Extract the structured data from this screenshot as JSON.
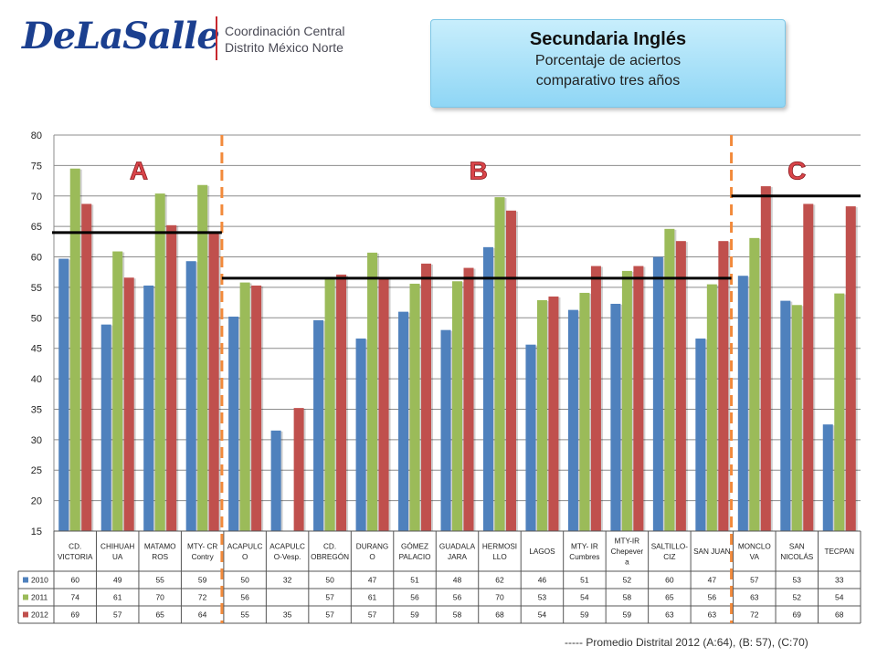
{
  "logo": {
    "brand": "DeLaSalle",
    "line1": "Coordinación Central",
    "line2": "Distrito México Norte"
  },
  "header": {
    "title": "Secundaria Inglés",
    "subtitle_line1": "Porcentaje de aciertos",
    "subtitle_line2": "comparativo tres años"
  },
  "footnote": "----- Promedio Distrital 2012   (A:64), (B: 57), (C:70)",
  "colors": {
    "2010": "#4f81bd",
    "2011": "#9bbb59",
    "2012": "#c0504d",
    "divider": "#f28a3b"
  },
  "chart_data": {
    "type": "bar",
    "categories": [
      [
        "CD.",
        "VICTORIA"
      ],
      [
        "CHIHUAH",
        "UA"
      ],
      [
        "MATAMO",
        "ROS"
      ],
      [
        "MTY- CR",
        "Contry"
      ],
      [
        "ACAPULC",
        "O"
      ],
      [
        "ACAPULC",
        "O-Vesp."
      ],
      [
        "CD.",
        "OBREGÓN"
      ],
      [
        "DURANG",
        "O"
      ],
      [
        "GÓMEZ",
        "PALACIO"
      ],
      [
        "GUADALA",
        "JARA"
      ],
      [
        "HERMOSI",
        "LLO"
      ],
      [
        "LAGOS"
      ],
      [
        "MTY- IR",
        "Cumbres"
      ],
      [
        "MTY-IR",
        "Chepever",
        "a"
      ],
      [
        "SALTILLO-",
        "CIZ"
      ],
      [
        "SAN JUAN"
      ],
      [
        "MONCLO",
        "VA"
      ],
      [
        "SAN",
        "NICOLÁS"
      ],
      [
        "TECPAN"
      ]
    ],
    "series": [
      {
        "name": "2010",
        "values": [
          60,
          49,
          55,
          59,
          50,
          32,
          50,
          47,
          51,
          48,
          62,
          46,
          51,
          52,
          60,
          47,
          57,
          53,
          33
        ],
        "plot": [
          59.7,
          48.9,
          55.3,
          59.3,
          50.2,
          31.5,
          49.6,
          46.6,
          51.0,
          48.0,
          61.6,
          45.6,
          51.3,
          52.3,
          60.0,
          46.6,
          56.9,
          52.8,
          32.5
        ]
      },
      {
        "name": "2011",
        "values": [
          74,
          61,
          70,
          72,
          56,
          null,
          57,
          61,
          56,
          56,
          70,
          53,
          54,
          58,
          65,
          56,
          63,
          52,
          54
        ],
        "plot": [
          74.5,
          60.9,
          70.4,
          71.8,
          55.8,
          null,
          56.6,
          60.7,
          55.6,
          56.0,
          69.8,
          52.9,
          54.1,
          57.7,
          64.6,
          55.5,
          63.1,
          52.1,
          54.0
        ]
      },
      {
        "name": "2012",
        "values": [
          69,
          57,
          65,
          64,
          55,
          35,
          57,
          57,
          59,
          58,
          68,
          54,
          59,
          59,
          63,
          63,
          72,
          69,
          68
        ],
        "plot": [
          68.7,
          56.6,
          65.2,
          64.1,
          55.3,
          35.2,
          57.1,
          56.6,
          58.9,
          58.2,
          67.6,
          53.5,
          58.5,
          58.5,
          62.6,
          62.6,
          71.6,
          68.7,
          68.3
        ]
      }
    ],
    "ylim": [
      15,
      80
    ],
    "yticks": [
      15,
      20,
      25,
      30,
      35,
      40,
      45,
      50,
      55,
      60,
      65,
      70,
      75,
      80
    ],
    "groups": [
      {
        "label": "A",
        "start": 0,
        "end": 3,
        "average": 64
      },
      {
        "label": "B",
        "start": 4,
        "end": 15,
        "average": 56.5
      },
      {
        "label": "C",
        "start": 16,
        "end": 18,
        "average": 70
      }
    ],
    "legend": "data-table",
    "grid": true
  }
}
